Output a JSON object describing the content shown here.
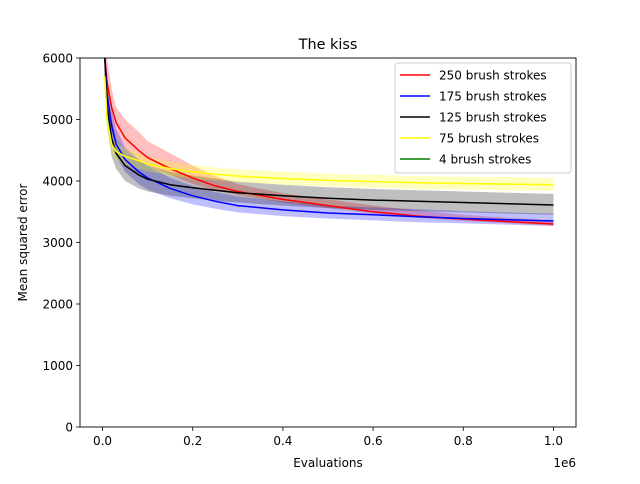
{
  "chart_data": {
    "type": "line",
    "title": "The kiss",
    "xlabel": "Evaluations",
    "ylabel": "Mean squared error",
    "x_scale_label": "1e6",
    "xlim": [
      -50000,
      1050000
    ],
    "ylim": [
      0,
      6000
    ],
    "x_ticks": [
      0,
      200000,
      400000,
      600000,
      800000,
      1000000
    ],
    "x_tick_labels": [
      "0.0",
      "0.2",
      "0.4",
      "0.6",
      "0.8",
      "1.0"
    ],
    "y_ticks": [
      0,
      1000,
      2000,
      3000,
      4000,
      5000,
      6000
    ],
    "y_tick_labels": [
      "0",
      "1000",
      "2000",
      "3000",
      "4000",
      "5000",
      "6000"
    ],
    "grid": false,
    "legend_position": "top-right",
    "series": [
      {
        "name": "250 brush strokes",
        "color": "#ff0000",
        "x": [
          5000,
          10000,
          20000,
          30000,
          50000,
          80000,
          100000,
          150000,
          200000,
          250000,
          300000,
          400000,
          500000,
          600000,
          700000,
          800000,
          900000,
          1000000
        ],
        "y": [
          6000,
          5600,
          5200,
          4950,
          4700,
          4500,
          4380,
          4200,
          4050,
          3920,
          3830,
          3700,
          3600,
          3500,
          3430,
          3380,
          3340,
          3300
        ],
        "band_low": [
          5400,
          5200,
          4900,
          4700,
          4500,
          4350,
          4250,
          4100,
          3950,
          3850,
          3770,
          3650,
          3560,
          3470,
          3400,
          3350,
          3310,
          3270
        ],
        "band_high": [
          6000,
          6000,
          5500,
          5200,
          5000,
          4800,
          4650,
          4450,
          4250,
          4080,
          3950,
          3800,
          3700,
          3600,
          3520,
          3450,
          3400,
          3360
        ]
      },
      {
        "name": "175 brush strokes",
        "color": "#0000ff",
        "x": [
          5000,
          10000,
          20000,
          30000,
          50000,
          80000,
          100000,
          150000,
          200000,
          250000,
          300000,
          400000,
          500000,
          600000,
          700000,
          800000,
          900000,
          1000000
        ],
        "y": [
          6000,
          5400,
          4900,
          4600,
          4350,
          4150,
          4050,
          3880,
          3760,
          3670,
          3600,
          3530,
          3480,
          3450,
          3420,
          3390,
          3370,
          3350
        ],
        "band_low": [
          5600,
          5100,
          4650,
          4400,
          4150,
          3950,
          3860,
          3720,
          3620,
          3550,
          3490,
          3430,
          3390,
          3360,
          3330,
          3310,
          3290,
          3270
        ],
        "band_high": [
          6000,
          5700,
          5150,
          4850,
          4550,
          4350,
          4250,
          4050,
          3920,
          3820,
          3750,
          3670,
          3600,
          3570,
          3540,
          3510,
          3490,
          3470
        ]
      },
      {
        "name": "125 brush strokes",
        "color": "#000000",
        "x": [
          5000,
          10000,
          20000,
          30000,
          50000,
          80000,
          100000,
          150000,
          200000,
          250000,
          300000,
          400000,
          500000,
          600000,
          700000,
          800000,
          900000,
          1000000
        ],
        "y": [
          6000,
          5200,
          4700,
          4450,
          4250,
          4100,
          4030,
          3940,
          3890,
          3850,
          3810,
          3760,
          3720,
          3690,
          3670,
          3650,
          3630,
          3610
        ],
        "band_low": [
          5500,
          4900,
          4400,
          4200,
          4000,
          3880,
          3830,
          3760,
          3720,
          3680,
          3650,
          3600,
          3560,
          3530,
          3510,
          3490,
          3470,
          3450
        ],
        "band_high": [
          6000,
          5500,
          5000,
          4700,
          4500,
          4350,
          4250,
          4150,
          4090,
          4040,
          3990,
          3940,
          3900,
          3870,
          3850,
          3830,
          3810,
          3790
        ]
      },
      {
        "name": "75 brush strokes",
        "color": "#ffff00",
        "x": [
          5000,
          10000,
          20000,
          30000,
          50000,
          80000,
          100000,
          150000,
          200000,
          250000,
          300000,
          400000,
          500000,
          600000,
          700000,
          800000,
          900000,
          1000000
        ],
        "y": [
          5700,
          5000,
          4600,
          4480,
          4400,
          4330,
          4280,
          4200,
          4150,
          4110,
          4080,
          4040,
          4010,
          3990,
          3970,
          3960,
          3950,
          3940
        ],
        "band_low": [
          5400,
          4800,
          4450,
          4350,
          4270,
          4200,
          4160,
          4090,
          4040,
          4010,
          3980,
          3940,
          3910,
          3890,
          3870,
          3860,
          3850,
          3840
        ],
        "band_high": [
          6000,
          5200,
          4750,
          4620,
          4530,
          4460,
          4400,
          4310,
          4260,
          4220,
          4190,
          4150,
          4120,
          4100,
          4080,
          4070,
          4060,
          4050
        ]
      },
      {
        "name": "4 brush strokes",
        "color": "#008000",
        "x": [],
        "y": []
      }
    ]
  }
}
